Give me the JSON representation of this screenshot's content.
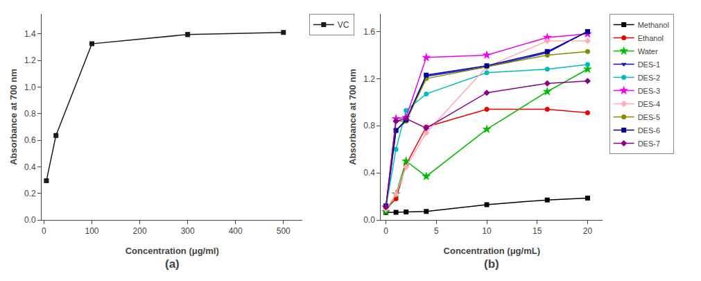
{
  "chart_data": [
    {
      "type": "line",
      "x": [
        5,
        25,
        100,
        300,
        500
      ],
      "series": [
        {
          "name": "VC",
          "color": "#1a1a1a",
          "marker": "square",
          "values": [
            0.295,
            0.635,
            1.325,
            1.395,
            1.41
          ],
          "error": [
            0.008,
            0.008,
            0.012,
            0.015,
            0.008
          ]
        }
      ],
      "xlabel": "Concentration (μg/ml)",
      "ylabel": "Absorbance at 700 nm",
      "xlim": [
        -5,
        540
      ],
      "ylim": [
        0.0,
        1.55
      ],
      "xticks": [
        0,
        100,
        200,
        300,
        400,
        500
      ],
      "yticks": [
        {
          "value": 0.0,
          "label": "0.0"
        },
        0.2,
        0.4,
        0.6,
        0.8,
        {
          "value": 1.0,
          "label": "1.0"
        },
        1.2,
        1.4
      ],
      "annotations": [
        "(a)"
      ],
      "legend": "upper right",
      "grid": false
    },
    {
      "type": "line",
      "x": [
        0,
        1,
        2,
        4,
        10,
        16,
        20
      ],
      "series": [
        {
          "name": "Methanol",
          "color": "#000000",
          "marker": "square",
          "values": [
            0.063,
            0.065,
            0.068,
            0.072,
            0.13,
            0.17,
            0.185
          ]
        },
        {
          "name": "Ethanol",
          "color": "#ee0000",
          "marker": "circle",
          "values": [
            0.09,
            0.18,
            0.47,
            0.79,
            0.94,
            0.94,
            0.91
          ]
        },
        {
          "name": "Water",
          "color": "#00bb00",
          "marker": "star",
          "values": [
            0.07,
            0.22,
            0.5,
            0.37,
            0.77,
            1.09,
            1.28
          ]
        },
        {
          "name": "DES-1",
          "color": "#1111cc",
          "marker": "triangle-down",
          "values": [
            0.11,
            0.76,
            0.84,
            1.22,
            1.3,
            1.42,
            1.6
          ]
        },
        {
          "name": "DES-2",
          "color": "#00bbbb",
          "marker": "circle",
          "values": [
            0.11,
            0.6,
            0.93,
            1.07,
            1.25,
            1.28,
            1.32
          ]
        },
        {
          "name": "DES-3",
          "color": "#ee00ee",
          "marker": "star",
          "values": [
            0.11,
            0.86,
            0.87,
            1.38,
            1.4,
            1.55,
            1.58
          ]
        },
        {
          "name": "DES-4",
          "color": "#ffaabb",
          "marker": "diamond",
          "values": [
            0.09,
            0.22,
            0.45,
            0.74,
            1.3,
            1.52,
            1.52
          ]
        },
        {
          "name": "DES-5",
          "color": "#888800",
          "marker": "circle",
          "values": [
            0.11,
            0.84,
            0.84,
            1.2,
            1.3,
            1.4,
            1.43
          ]
        },
        {
          "name": "DES-6",
          "color": "#000099",
          "marker": "square",
          "values": [
            0.12,
            0.76,
            0.85,
            1.23,
            1.31,
            1.43,
            1.6
          ]
        },
        {
          "name": "DES-7",
          "color": "#880088",
          "marker": "diamond",
          "values": [
            0.11,
            0.84,
            0.86,
            0.78,
            1.08,
            1.16,
            1.18
          ]
        }
      ],
      "xlabel": "Concentration (μg/mL)",
      "ylabel": "Absorbance at 700 nm",
      "xlim": [
        -0.5,
        21.5
      ],
      "ylim": [
        0.0,
        1.75
      ],
      "xticks": [
        0,
        5,
        10,
        15,
        20
      ],
      "yticks": [
        {
          "value": 0.0,
          "label": "0.0"
        },
        0.4,
        0.8,
        1.2,
        1.6
      ],
      "annotations": [
        "(b)"
      ],
      "legend": "upper right",
      "grid": false
    }
  ]
}
